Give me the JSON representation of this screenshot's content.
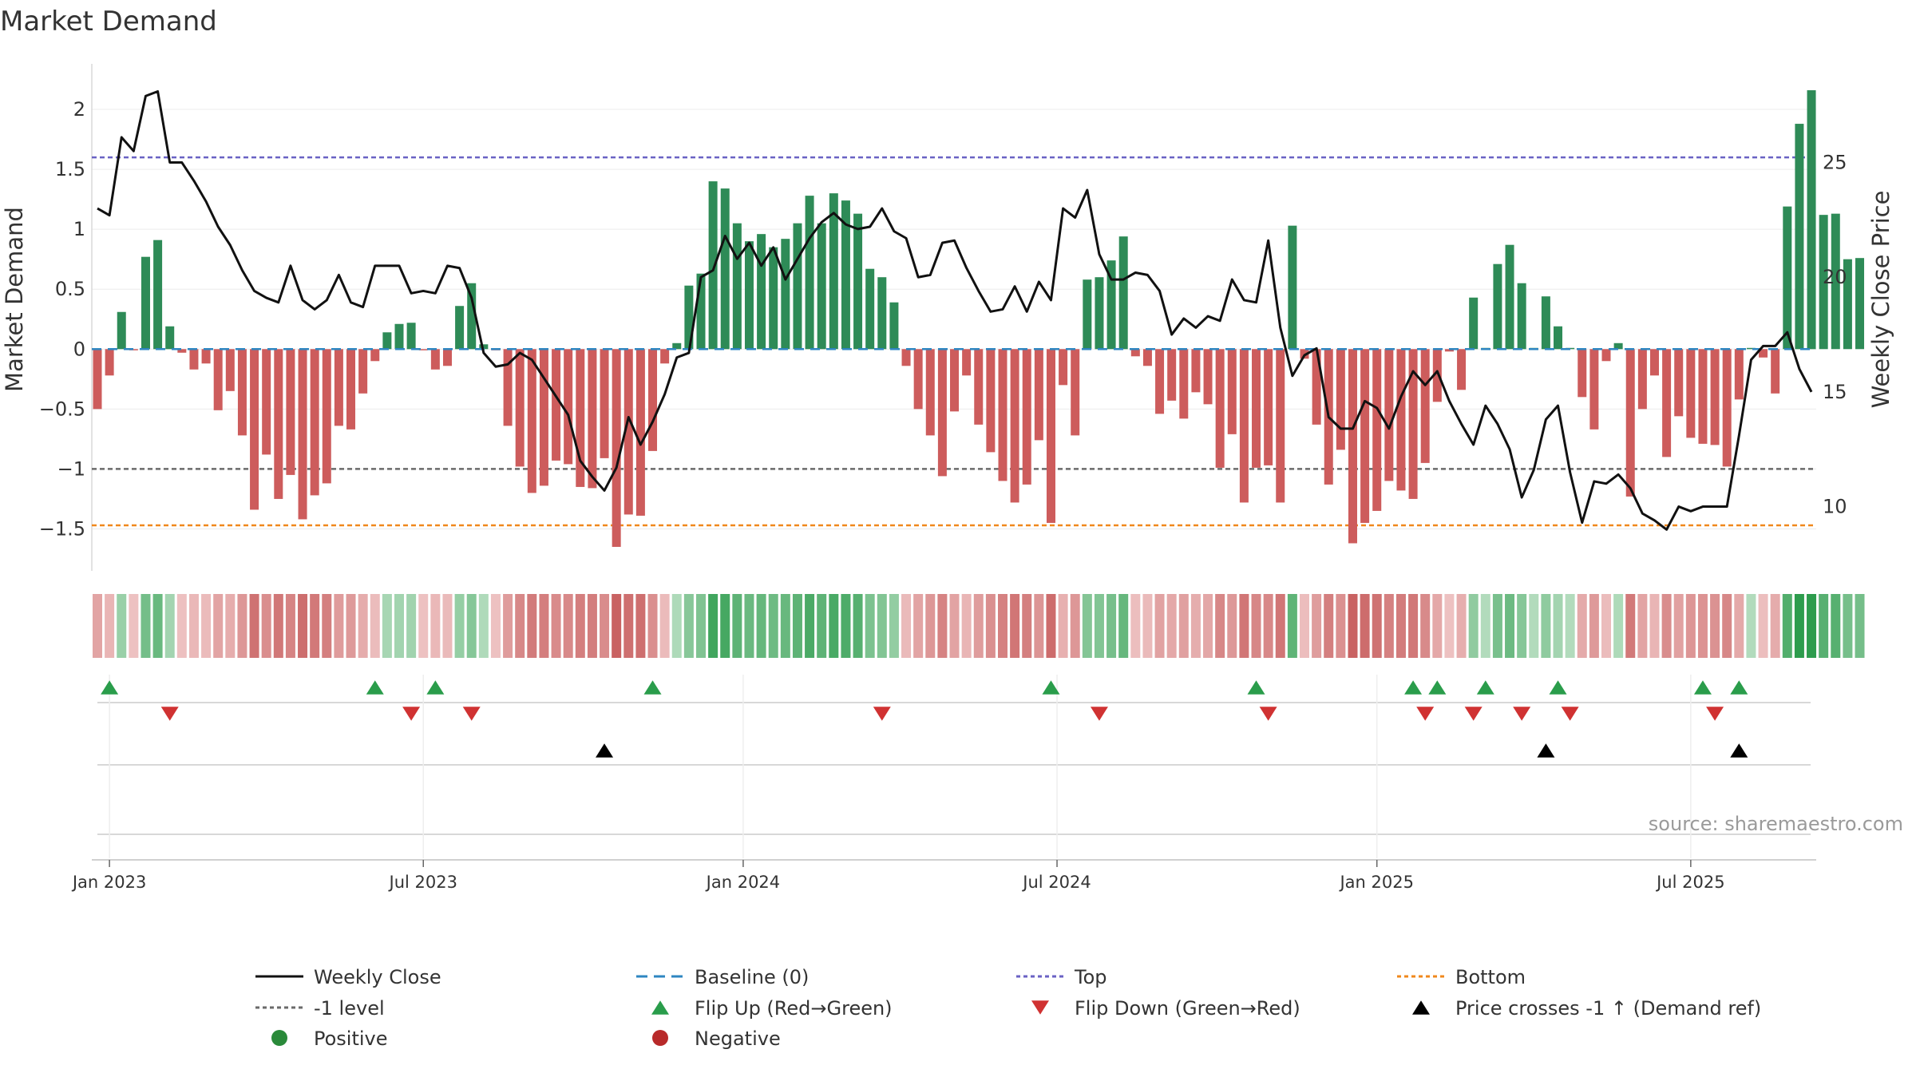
{
  "chart_data": {
    "type": "bar",
    "title": "Market Demand",
    "ylabel": "Market Demand",
    "y2label": "Weekly Close Price",
    "ylim": [
      -1.85,
      2.38
    ],
    "y2lim": [
      7.2,
      29.3
    ],
    "yticks": [
      {
        "value": 2,
        "label": "2"
      },
      {
        "value": 1.5,
        "label": "1.5"
      },
      {
        "value": 1,
        "label": "1"
      },
      {
        "value": 0.5,
        "label": "0.5"
      },
      {
        "value": 0,
        "label": "0"
      },
      {
        "value": -0.5,
        "label": "−0.5"
      },
      {
        "value": -1,
        "label": "−1"
      },
      {
        "value": -1.5,
        "label": "−1.5"
      }
    ],
    "y2ticks": [
      {
        "value": 25,
        "label": "25"
      },
      {
        "value": 20,
        "label": "20"
      },
      {
        "value": 15,
        "label": "15"
      },
      {
        "value": 10,
        "label": "10"
      }
    ],
    "xticks": [
      {
        "week": 1,
        "label": "Jan 2023"
      },
      {
        "week": 27,
        "label": "Jul 2023"
      },
      {
        "week": 53.5,
        "label": "Jan 2024"
      },
      {
        "week": 79.5,
        "label": "Jul 2024"
      },
      {
        "week": 106,
        "label": "Jan 2025"
      },
      {
        "week": 132,
        "label": "Jul 2025"
      }
    ],
    "demand": [
      -0.5,
      -0.22,
      0.31,
      -0.01,
      0.77,
      0.91,
      0.19,
      -0.03,
      -0.17,
      -0.12,
      -0.51,
      -0.35,
      -0.72,
      -1.34,
      -0.88,
      -1.25,
      -1.05,
      -1.42,
      -1.22,
      -1.12,
      -0.64,
      -0.67,
      -0.37,
      -0.1,
      0.14,
      0.21,
      0.22,
      -0.01,
      -0.17,
      -0.14,
      0.36,
      0.55,
      0.04,
      -0.01,
      -0.64,
      -0.98,
      -1.2,
      -1.14,
      -0.93,
      -0.96,
      -1.15,
      -1.16,
      -0.91,
      -1.65,
      -1.38,
      -1.39,
      -0.85,
      -0.12,
      0.05,
      0.53,
      0.63,
      1.4,
      1.34,
      1.05,
      0.9,
      0.96,
      0.85,
      0.92,
      1.05,
      1.28,
      1.05,
      1.3,
      1.24,
      1.13,
      0.67,
      0.6,
      0.39,
      -0.14,
      -0.5,
      -0.72,
      -1.06,
      -0.52,
      -0.22,
      -0.63,
      -0.86,
      -1.1,
      -1.28,
      -1.13,
      -0.76,
      -1.45,
      -0.3,
      -0.72,
      0.58,
      0.6,
      0.74,
      0.94,
      -0.06,
      -0.14,
      -0.54,
      -0.43,
      -0.58,
      -0.36,
      -0.46,
      -0.99,
      -0.71,
      -1.28,
      -0.99,
      -0.97,
      -1.28,
      1.03,
      -0.08,
      -0.63,
      -1.13,
      -0.84,
      -1.62,
      -1.45,
      -1.35,
      -1.1,
      -1.18,
      -1.25,
      -0.95,
      -0.44,
      -0.02,
      -0.34,
      0.43,
      0.01,
      0.71,
      0.87,
      0.55,
      0.01,
      0.44,
      0.19,
      0.01,
      -0.4,
      -0.67,
      -0.1,
      0.05,
      -1.23,
      -0.5,
      -0.22,
      -0.9,
      -0.56,
      -0.74,
      -0.79,
      -0.8,
      -0.98,
      -0.42,
      0.01,
      -0.07,
      -0.37,
      1.19,
      1.88,
      2.16,
      1.12,
      1.13,
      0.75,
      0.76
    ],
    "close": [
      23.0,
      22.7,
      26.1,
      25.5,
      27.9,
      28.1,
      25.0,
      25.0,
      24.2,
      23.3,
      22.2,
      21.4,
      20.3,
      19.4,
      19.1,
      18.9,
      20.5,
      19.0,
      18.6,
      19.0,
      20.1,
      18.9,
      18.7,
      20.5,
      20.5,
      20.5,
      19.3,
      19.4,
      19.3,
      20.5,
      20.4,
      19.1,
      16.7,
      16.1,
      16.2,
      16.7,
      16.4,
      15.6,
      14.8,
      14.0,
      12.0,
      11.3,
      10.7,
      11.7,
      13.9,
      12.7,
      13.7,
      14.9,
      16.5,
      16.7,
      20.0,
      20.3,
      21.8,
      20.8,
      21.5,
      20.5,
      21.3,
      19.9,
      20.8,
      21.7,
      22.4,
      22.8,
      22.3,
      22.1,
      22.2,
      23.0,
      22.0,
      21.7,
      20.0,
      20.1,
      21.5,
      21.6,
      20.4,
      19.4,
      18.5,
      18.6,
      19.6,
      18.5,
      19.8,
      19.0,
      23.0,
      22.6,
      23.8,
      21.0,
      19.9,
      19.9,
      20.2,
      20.1,
      19.4,
      17.5,
      18.2,
      17.8,
      18.3,
      18.1,
      19.9,
      19.0,
      18.9,
      21.6,
      17.8,
      15.7,
      16.6,
      16.9,
      13.9,
      13.4,
      13.4,
      14.6,
      14.3,
      13.4,
      14.8,
      15.9,
      15.3,
      15.9,
      14.6,
      13.6,
      12.7,
      14.4,
      13.6,
      12.5,
      10.4,
      11.6,
      13.8,
      14.4,
      11.5,
      9.3,
      11.1,
      11.0,
      11.4,
      10.8,
      9.7,
      9.4,
      9.0,
      10.0,
      9.8,
      10.0,
      10.0,
      10.0,
      13.1,
      16.4,
      17.0,
      17.0,
      17.6,
      16.0,
      15.0
    ],
    "levels": [
      {
        "name": "Top",
        "value": 1.6,
        "color": "#6a62c4"
      },
      {
        "name": "-1 level",
        "value": -1.0,
        "color": "#6a6a6a"
      },
      {
        "name": "Bottom",
        "value": -1.47,
        "color": "#f0881c"
      }
    ],
    "flip_up_weeks": [
      1,
      23,
      28,
      46,
      79,
      96,
      109,
      111,
      115,
      121,
      133,
      136
    ],
    "flip_down_weeks": [
      6,
      26,
      31,
      65,
      83,
      97,
      110,
      114,
      118,
      122,
      134
    ],
    "price_cross_weeks": [
      42,
      120,
      136
    ],
    "source": "source: sharemaestro.com",
    "legend": [
      {
        "label": "Weekly Close",
        "type": "line",
        "color": "#111111"
      },
      {
        "label": "Baseline (0)",
        "type": "dash",
        "color": "#2e86c1"
      },
      {
        "label": "Top",
        "type": "dot",
        "color": "#6a62c4"
      },
      {
        "label": "Bottom",
        "type": "dot",
        "color": "#f0881c"
      },
      {
        "label": "-1 level",
        "type": "dot",
        "color": "#6a6a6a"
      },
      {
        "label": "Flip Up (Red→Green)",
        "type": "tri-up",
        "color": "#2a9d4b"
      },
      {
        "label": "Flip Down (Green→Red)",
        "type": "tri-down",
        "color": "#d03232"
      },
      {
        "label": "Price crosses -1 ↑ (Demand ref)",
        "type": "tri-up",
        "color": "#000000"
      },
      {
        "label": "Positive",
        "type": "circle",
        "color": "#2a8a3a"
      },
      {
        "label": "Negative",
        "type": "circle",
        "color": "#b82a2a"
      }
    ],
    "colors": {
      "positive_bar": "#2e8b57",
      "negative_bar": "#cd5c5c",
      "close_line": "#111111",
      "baseline": "#2e86c1",
      "flip_up": "#2a9d4b",
      "flip_down": "#d03232",
      "price_cross": "#000000"
    }
  }
}
